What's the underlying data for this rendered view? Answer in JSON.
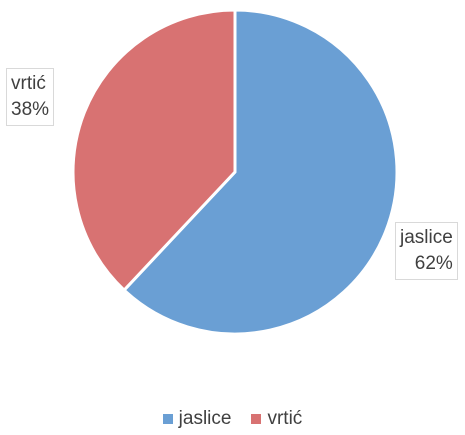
{
  "chart_data": {
    "type": "pie",
    "categories": [
      "jaslice",
      "vrtić"
    ],
    "values": [
      62,
      38
    ],
    "colors": [
      "#6a9fd4",
      "#d87272"
    ],
    "data_labels": [
      {
        "name": "jaslice",
        "value": "62%"
      },
      {
        "name": "vrtić",
        "value": "38%"
      }
    ],
    "legend": {
      "position": "bottom",
      "entries": [
        "jaslice",
        "vrtić"
      ]
    }
  }
}
